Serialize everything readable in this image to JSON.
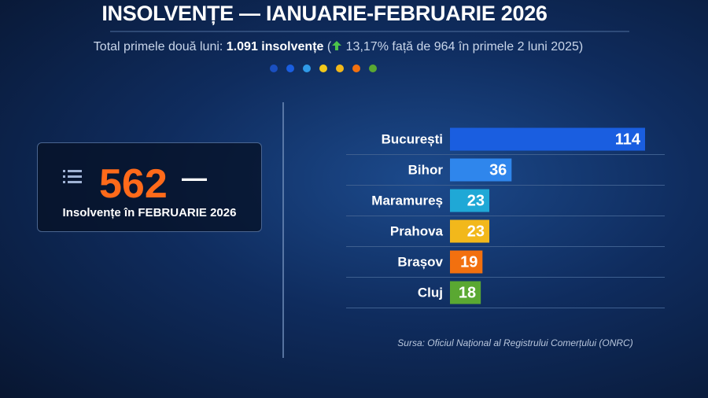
{
  "chart_data": {
    "type": "bar",
    "orientation": "horizontal",
    "title": "INSOLVENȚE — IANUARIE-FEBRUARIE 2026",
    "subtitle": [
      "Total primele două luni:",
      "1.091 insolvențe",
      "(",
      "13,17% față de 964 în primele 2 luni 2025)"
    ],
    "highlight": {
      "value": 562,
      "dash": "—",
      "label": "Insolvențe în FEBRUARIE 2026"
    },
    "categories": [
      "București",
      "Bihor",
      "Maramureș",
      "Prahova",
      "Brașov",
      "Cluj"
    ],
    "values": [
      114,
      36,
      23,
      23,
      19,
      18
    ],
    "colors": [
      "#1a5ee0",
      "#2f86ec",
      "#1fa8d6",
      "#f2b81b",
      "#f2700f",
      "#5aa832"
    ],
    "source": "Sursa: Oficiul Național al Registrului Comerțului (ONRC)"
  }
}
